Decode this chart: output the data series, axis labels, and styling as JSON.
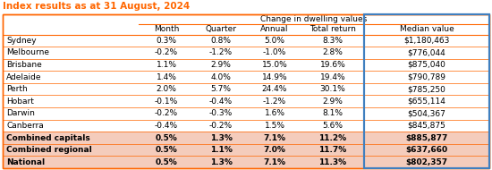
{
  "title": "Index results as at 31 August, 2024",
  "title_color": "#FF6600",
  "header1": "Change in dwelling values",
  "col_headers": [
    "",
    "Month",
    "Quarter",
    "Annual",
    "Total return",
    "Median value"
  ],
  "rows": [
    {
      "city": "Sydney",
      "month": "0.3%",
      "quarter": "0.8%",
      "annual": "5.0%",
      "total": "8.3%",
      "median": "$1,180,463",
      "bold": false
    },
    {
      "city": "Melbourne",
      "month": "-0.2%",
      "quarter": "-1.2%",
      "annual": "-1.0%",
      "total": "2.8%",
      "median": "$776,044",
      "bold": false
    },
    {
      "city": "Brisbane",
      "month": "1.1%",
      "quarter": "2.9%",
      "annual": "15.0%",
      "total": "19.6%",
      "median": "$875,040",
      "bold": false
    },
    {
      "city": "Adelaide",
      "month": "1.4%",
      "quarter": "4.0%",
      "annual": "14.9%",
      "total": "19.4%",
      "median": "$790,789",
      "bold": false
    },
    {
      "city": "Perth",
      "month": "2.0%",
      "quarter": "5.7%",
      "annual": "24.4%",
      "total": "30.1%",
      "median": "$785,250",
      "bold": false
    },
    {
      "city": "Hobart",
      "month": "-0.1%",
      "quarter": "-0.4%",
      "annual": "-1.2%",
      "total": "2.9%",
      "median": "$655,114",
      "bold": false
    },
    {
      "city": "Darwin",
      "month": "-0.2%",
      "quarter": "-0.3%",
      "annual": "1.6%",
      "total": "8.1%",
      "median": "$504,367",
      "bold": false
    },
    {
      "city": "Canberra",
      "month": "-0.4%",
      "quarter": "-0.2%",
      "annual": "1.5%",
      "total": "5.6%",
      "median": "$845,875",
      "bold": false
    },
    {
      "city": "Combined capitals",
      "month": "0.5%",
      "quarter": "1.3%",
      "annual": "7.1%",
      "total": "11.2%",
      "median": "$885,877",
      "bold": true
    },
    {
      "city": "Combined regional",
      "month": "0.5%",
      "quarter": "1.1%",
      "annual": "7.0%",
      "total": "11.7%",
      "median": "$637,660",
      "bold": true
    },
    {
      "city": "National",
      "month": "0.5%",
      "quarter": "1.3%",
      "annual": "7.1%",
      "total": "11.3%",
      "median": "$802,357",
      "bold": true
    }
  ],
  "border_color": "#FF6600",
  "median_border_color": "#3F7FBF",
  "bold_bg_color": "#F4CCBC",
  "normal_bg_color": "#FFFFFF",
  "font_color": "#000000",
  "font_size": 6.5,
  "header_font_size": 6.5,
  "title_font_size": 7.5,
  "fig_width": 5.5,
  "fig_height": 1.9,
  "dpi": 100
}
